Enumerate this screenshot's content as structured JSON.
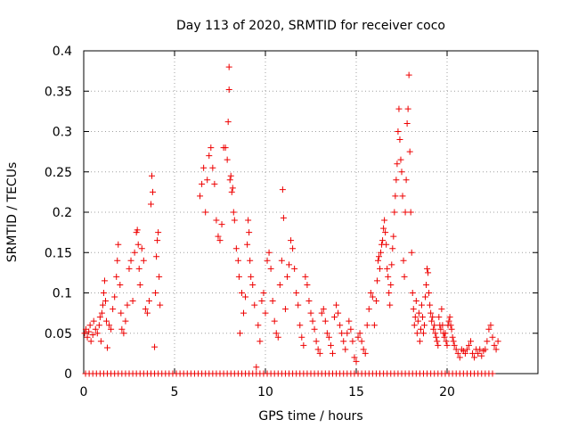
{
  "chart_data": {
    "type": "scatter",
    "title": "Day 113 of 2020, SRMTID for receiver coco",
    "xlabel": "GPS time / hours",
    "ylabel": "SRMTID / TECUs",
    "xlim": [
      0,
      25
    ],
    "ylim": [
      0,
      0.4
    ],
    "xticks": [
      0,
      5,
      10,
      15,
      20
    ],
    "yticks": [
      0,
      0.05,
      0.1,
      0.15,
      0.2,
      0.25,
      0.3,
      0.35,
      0.4
    ],
    "ytick_labels": [
      "0",
      "0.05",
      "0.1",
      "0.15",
      "0.2",
      "0.25",
      "0.3",
      "0.35",
      "0.4"
    ],
    "grid": true,
    "marker": "+",
    "color": "#ee0000",
    "series": [
      {
        "name": "SRMTID",
        "points": [
          [
            0.05,
            0.05
          ],
          [
            0.12,
            0.055
          ],
          [
            0.2,
            0.045
          ],
          [
            0.28,
            0.052
          ],
          [
            0.35,
            0.06
          ],
          [
            0.4,
            0.04
          ],
          [
            0.5,
            0.048
          ],
          [
            0.55,
            0.065
          ],
          [
            0.65,
            0.055
          ],
          [
            0.75,
            0.05
          ],
          [
            0.85,
            0.06
          ],
          [
            0.9,
            0.07
          ],
          [
            0.95,
            0.04
          ],
          [
            1.0,
            0.075
          ],
          [
            1.05,
            0.085
          ],
          [
            1.1,
            0.1
          ],
          [
            1.15,
            0.115
          ],
          [
            1.2,
            0.09
          ],
          [
            1.25,
            0.065
          ],
          [
            1.3,
            0.032
          ],
          [
            1.4,
            0.06
          ],
          [
            1.5,
            0.055
          ],
          [
            1.6,
            0.08
          ],
          [
            1.7,
            0.095
          ],
          [
            1.8,
            0.12
          ],
          [
            1.85,
            0.14
          ],
          [
            1.9,
            0.16
          ],
          [
            2.0,
            0.11
          ],
          [
            2.05,
            0.075
          ],
          [
            2.1,
            0.055
          ],
          [
            2.2,
            0.05
          ],
          [
            2.3,
            0.065
          ],
          [
            2.4,
            0.085
          ],
          [
            2.5,
            0.13
          ],
          [
            2.6,
            0.14
          ],
          [
            2.7,
            0.09
          ],
          [
            2.8,
            0.15
          ],
          [
            2.9,
            0.175
          ],
          [
            2.95,
            0.178
          ],
          [
            3.0,
            0.16
          ],
          [
            3.05,
            0.13
          ],
          [
            3.1,
            0.11
          ],
          [
            3.2,
            0.155
          ],
          [
            3.3,
            0.14
          ],
          [
            3.4,
            0.08
          ],
          [
            3.5,
            0.075
          ],
          [
            3.6,
            0.09
          ],
          [
            3.7,
            0.21
          ],
          [
            3.75,
            0.245
          ],
          [
            3.8,
            0.225
          ],
          [
            3.9,
            0.033
          ],
          [
            3.95,
            0.1
          ],
          [
            4.0,
            0.145
          ],
          [
            4.05,
            0.165
          ],
          [
            4.1,
            0.175
          ],
          [
            4.15,
            0.12
          ],
          [
            4.2,
            0.085
          ],
          [
            6.4,
            0.22
          ],
          [
            6.5,
            0.235
          ],
          [
            6.6,
            0.255
          ],
          [
            6.7,
            0.2
          ],
          [
            6.8,
            0.24
          ],
          [
            6.9,
            0.27
          ],
          [
            7.0,
            0.28
          ],
          [
            7.1,
            0.255
          ],
          [
            7.2,
            0.235
          ],
          [
            7.3,
            0.19
          ],
          [
            7.4,
            0.17
          ],
          [
            7.5,
            0.165
          ],
          [
            7.6,
            0.185
          ],
          [
            7.7,
            0.28
          ],
          [
            7.8,
            0.28
          ],
          [
            7.9,
            0.265
          ],
          [
            7.95,
            0.312
          ],
          [
            8.0,
            0.38
          ],
          [
            8.0,
            0.352
          ],
          [
            8.05,
            0.24
          ],
          [
            8.1,
            0.245
          ],
          [
            8.15,
            0.225
          ],
          [
            8.2,
            0.23
          ],
          [
            8.25,
            0.2
          ],
          [
            8.3,
            0.19
          ],
          [
            8.4,
            0.155
          ],
          [
            8.5,
            0.14
          ],
          [
            8.55,
            0.12
          ],
          [
            8.6,
            0.05
          ],
          [
            8.7,
            0.1
          ],
          [
            8.8,
            0.075
          ],
          [
            8.9,
            0.095
          ],
          [
            9.0,
            0.16
          ],
          [
            9.05,
            0.19
          ],
          [
            9.1,
            0.175
          ],
          [
            9.15,
            0.14
          ],
          [
            9.2,
            0.12
          ],
          [
            9.3,
            0.11
          ],
          [
            9.4,
            0.085
          ],
          [
            9.5,
            0.008
          ],
          [
            9.6,
            0.06
          ],
          [
            9.7,
            0.04
          ],
          [
            9.8,
            0.09
          ],
          [
            9.9,
            0.1
          ],
          [
            10.0,
            0.075
          ],
          [
            10.1,
            0.14
          ],
          [
            10.2,
            0.15
          ],
          [
            10.3,
            0.13
          ],
          [
            10.4,
            0.09
          ],
          [
            10.5,
            0.065
          ],
          [
            10.6,
            0.05
          ],
          [
            10.7,
            0.045
          ],
          [
            10.8,
            0.11
          ],
          [
            10.9,
            0.14
          ],
          [
            10.95,
            0.228
          ],
          [
            11.0,
            0.193
          ],
          [
            11.1,
            0.08
          ],
          [
            11.2,
            0.12
          ],
          [
            11.3,
            0.135
          ],
          [
            11.4,
            0.165
          ],
          [
            11.5,
            0.155
          ],
          [
            11.6,
            0.13
          ],
          [
            11.7,
            0.1
          ],
          [
            11.8,
            0.085
          ],
          [
            11.9,
            0.06
          ],
          [
            12.0,
            0.045
          ],
          [
            12.1,
            0.035
          ],
          [
            12.2,
            0.12
          ],
          [
            12.3,
            0.11
          ],
          [
            12.4,
            0.09
          ],
          [
            12.5,
            0.075
          ],
          [
            12.6,
            0.065
          ],
          [
            12.7,
            0.055
          ],
          [
            12.8,
            0.04
          ],
          [
            12.9,
            0.03
          ],
          [
            13.0,
            0.025
          ],
          [
            13.1,
            0.075
          ],
          [
            13.2,
            0.08
          ],
          [
            13.3,
            0.065
          ],
          [
            13.4,
            0.05
          ],
          [
            13.5,
            0.045
          ],
          [
            13.6,
            0.035
          ],
          [
            13.7,
            0.025
          ],
          [
            13.8,
            0.07
          ],
          [
            13.9,
            0.085
          ],
          [
            14.0,
            0.075
          ],
          [
            14.1,
            0.06
          ],
          [
            14.2,
            0.05
          ],
          [
            14.3,
            0.04
          ],
          [
            14.4,
            0.03
          ],
          [
            14.5,
            0.05
          ],
          [
            14.6,
            0.065
          ],
          [
            14.7,
            0.055
          ],
          [
            14.8,
            0.04
          ],
          [
            14.9,
            0.02
          ],
          [
            15.0,
            0.015
          ],
          [
            15.1,
            0.045
          ],
          [
            15.2,
            0.05
          ],
          [
            15.3,
            0.04
          ],
          [
            15.4,
            0.03
          ],
          [
            15.5,
            0.025
          ],
          [
            15.6,
            0.06
          ],
          [
            15.7,
            0.08
          ],
          [
            15.8,
            0.1
          ],
          [
            15.9,
            0.095
          ],
          [
            16.0,
            0.06
          ],
          [
            16.1,
            0.09
          ],
          [
            16.15,
            0.115
          ],
          [
            16.2,
            0.14
          ],
          [
            16.25,
            0.145
          ],
          [
            16.3,
            0.13
          ],
          [
            16.35,
            0.15
          ],
          [
            16.4,
            0.16
          ],
          [
            16.45,
            0.165
          ],
          [
            16.5,
            0.18
          ],
          [
            16.55,
            0.19
          ],
          [
            16.6,
            0.175
          ],
          [
            16.65,
            0.16
          ],
          [
            16.7,
            0.13
          ],
          [
            16.75,
            0.12
          ],
          [
            16.8,
            0.1
          ],
          [
            16.85,
            0.085
          ],
          [
            16.9,
            0.11
          ],
          [
            16.95,
            0.135
          ],
          [
            17.0,
            0.155
          ],
          [
            17.05,
            0.17
          ],
          [
            17.1,
            0.2
          ],
          [
            17.15,
            0.22
          ],
          [
            17.2,
            0.24
          ],
          [
            17.25,
            0.26
          ],
          [
            17.3,
            0.3
          ],
          [
            17.35,
            0.328
          ],
          [
            17.4,
            0.29
          ],
          [
            17.45,
            0.265
          ],
          [
            17.5,
            0.25
          ],
          [
            17.55,
            0.22
          ],
          [
            17.6,
            0.14
          ],
          [
            17.65,
            0.12
          ],
          [
            17.7,
            0.2
          ],
          [
            17.75,
            0.24
          ],
          [
            17.8,
            0.31
          ],
          [
            17.85,
            0.328
          ],
          [
            17.9,
            0.37
          ],
          [
            17.95,
            0.275
          ],
          [
            18.0,
            0.2
          ],
          [
            18.05,
            0.15
          ],
          [
            18.1,
            0.1
          ],
          [
            18.15,
            0.08
          ],
          [
            18.2,
            0.06
          ],
          [
            18.25,
            0.07
          ],
          [
            18.3,
            0.09
          ],
          [
            18.35,
            0.05
          ],
          [
            18.4,
            0.065
          ],
          [
            18.45,
            0.075
          ],
          [
            18.5,
            0.04
          ],
          [
            18.55,
            0.055
          ],
          [
            18.6,
            0.085
          ],
          [
            18.65,
            0.07
          ],
          [
            18.7,
            0.05
          ],
          [
            18.75,
            0.06
          ],
          [
            18.8,
            0.095
          ],
          [
            18.85,
            0.11
          ],
          [
            18.9,
            0.13
          ],
          [
            18.95,
            0.125
          ],
          [
            19.0,
            0.1
          ],
          [
            19.05,
            0.085
          ],
          [
            19.1,
            0.075
          ],
          [
            19.15,
            0.065
          ],
          [
            19.2,
            0.07
          ],
          [
            19.25,
            0.055
          ],
          [
            19.3,
            0.06
          ],
          [
            19.35,
            0.05
          ],
          [
            19.4,
            0.045
          ],
          [
            19.45,
            0.04
          ],
          [
            19.5,
            0.035
          ],
          [
            19.55,
            0.07
          ],
          [
            19.6,
            0.06
          ],
          [
            19.65,
            0.055
          ],
          [
            19.7,
            0.08
          ],
          [
            19.75,
            0.06
          ],
          [
            19.8,
            0.05
          ],
          [
            19.85,
            0.045
          ],
          [
            19.9,
            0.05
          ],
          [
            19.95,
            0.04
          ],
          [
            20.0,
            0.035
          ],
          [
            20.05,
            0.06
          ],
          [
            20.1,
            0.065
          ],
          [
            20.15,
            0.07
          ],
          [
            20.2,
            0.06
          ],
          [
            20.25,
            0.055
          ],
          [
            20.3,
            0.045
          ],
          [
            20.35,
            0.04
          ],
          [
            20.4,
            0.035
          ],
          [
            20.5,
            0.03
          ],
          [
            20.6,
            0.025
          ],
          [
            20.7,
            0.02
          ],
          [
            20.8,
            0.03
          ],
          [
            20.9,
            0.028
          ],
          [
            21.0,
            0.025
          ],
          [
            21.1,
            0.03
          ],
          [
            21.2,
            0.035
          ],
          [
            21.3,
            0.04
          ],
          [
            21.4,
            0.025
          ],
          [
            21.5,
            0.02
          ],
          [
            21.6,
            0.03
          ],
          [
            21.7,
            0.025
          ],
          [
            21.8,
            0.03
          ],
          [
            21.9,
            0.022
          ],
          [
            22.0,
            0.028
          ],
          [
            22.1,
            0.03
          ],
          [
            22.2,
            0.04
          ],
          [
            22.3,
            0.055
          ],
          [
            22.4,
            0.06
          ],
          [
            22.5,
            0.045
          ],
          [
            22.6,
            0.035
          ],
          [
            22.7,
            0.03
          ],
          [
            22.8,
            0.04
          ]
        ],
        "zero_x": [
          0.1,
          0.3,
          0.5,
          0.7,
          0.9,
          1.1,
          1.3,
          1.5,
          1.7,
          1.9,
          2.1,
          2.3,
          2.5,
          2.7,
          2.9,
          3.1,
          3.3,
          3.5,
          3.7,
          3.9,
          4.1,
          4.3,
          4.5,
          4.7,
          4.9,
          5.1,
          5.3,
          5.5,
          5.7,
          5.9,
          6.1,
          6.3,
          6.5,
          6.7,
          6.9,
          7.1,
          7.3,
          7.5,
          7.7,
          7.9,
          8.1,
          8.3,
          8.5,
          8.7,
          8.9,
          9.1,
          9.3,
          9.5,
          9.7,
          9.9,
          10.1,
          10.3,
          10.5,
          10.7,
          10.9,
          11.1,
          11.3,
          11.5,
          11.7,
          11.9,
          12.1,
          12.3,
          12.5,
          12.7,
          12.9,
          13.1,
          13.3,
          13.5,
          13.7,
          13.9,
          14.1,
          14.3,
          14.5,
          14.7,
          14.9,
          15.1,
          15.3,
          15.5,
          15.7,
          15.9,
          16.1,
          16.3,
          16.5,
          16.7,
          16.9,
          17.1,
          17.3,
          17.5,
          17.7,
          17.9,
          18.1,
          18.3,
          18.5,
          18.7,
          18.9,
          19.1,
          19.3,
          19.5,
          19.7,
          19.9,
          20.1,
          20.3,
          20.5,
          20.7,
          20.9,
          21.1,
          21.3,
          21.5,
          21.7,
          21.9,
          22.1,
          22.3,
          22.5
        ]
      }
    ]
  }
}
